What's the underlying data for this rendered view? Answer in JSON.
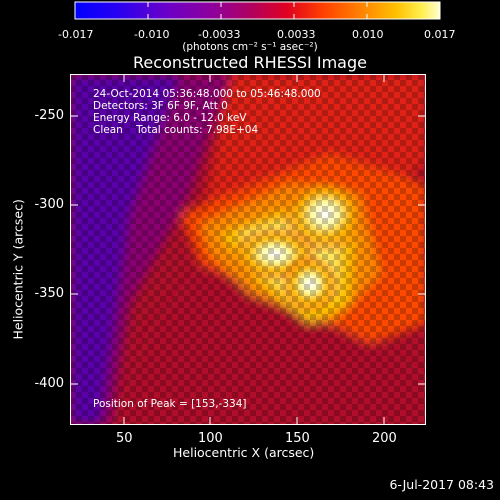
{
  "colorbar": {
    "ticks": [
      "-0.017",
      "-0.010",
      "-0.0033",
      "0.0033",
      "0.010",
      "0.017"
    ],
    "units": "(photons cm⁻² s⁻¹ asec⁻²)"
  },
  "title": "Reconstructed RHESSI Image",
  "info": {
    "line1": "24-Oct-2014 05:36:48.000 to 05:46:48.000",
    "line2": "Detectors: 3F 6F 9F, Att 0",
    "line3": "Energy Range: 6.0 - 12.0 keV",
    "line4": "Clean    Total counts: 7.98E+04",
    "peak": "Position of Peak = [153,-334]"
  },
  "axes": {
    "xlabel": "Heliocentric X (arcsec)",
    "ylabel": "Heliocentric Y (arcsec)",
    "xticks": [
      "50",
      "100",
      "150",
      "200"
    ],
    "yticks": [
      "-250",
      "-300",
      "-350",
      "-400"
    ]
  },
  "footer": {
    "date": "6-Jul-2017 08:43"
  },
  "colors": {
    "background": "#000000",
    "axes": "#ffffff"
  }
}
